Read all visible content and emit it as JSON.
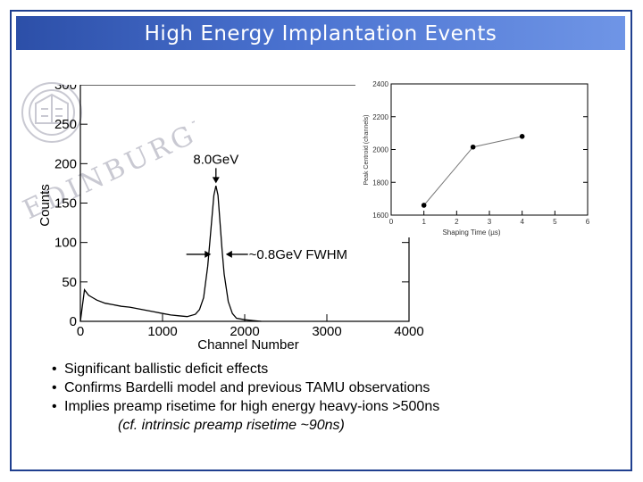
{
  "slide": {
    "title": "High Energy Implantation Events",
    "bullet_marker": "•",
    "bullets": [
      "Significant ballistic deficit effects",
      "Confirms Bardelli model and previous TAMU observations",
      "Implies preamp risetime for high energy heavy-ions >500ns"
    ],
    "sub_note": "(cf. intrinsic preamp risetime ~90ns)",
    "watermark_text": "EDINBURGH"
  },
  "colors": {
    "title_bar": "#3a61c0",
    "frame": "#1f3f8f",
    "watermark": "#c9c9d2"
  },
  "chart_data": [
    {
      "type": "line",
      "xlabel": "Channel Number",
      "ylabel": "Counts",
      "xlim": [
        0,
        4000
      ],
      "ylim": [
        0,
        300
      ],
      "xticks": [
        0,
        1000,
        2000,
        3000,
        4000
      ],
      "yticks": [
        0,
        50,
        100,
        150,
        200,
        250,
        300
      ],
      "grid": false,
      "series": [
        {
          "x": [
            0,
            50,
            100,
            150,
            200,
            300,
            400,
            500,
            600,
            700,
            800,
            900,
            1000,
            1100,
            1200,
            1300,
            1400,
            1450,
            1500,
            1550,
            1600,
            1625,
            1650,
            1675,
            1700,
            1725,
            1750,
            1800,
            1850,
            1900,
            2000,
            2100,
            2200
          ],
          "y": [
            0,
            40,
            33,
            30,
            27,
            23,
            21,
            19,
            18,
            16,
            14,
            12,
            10,
            8,
            7,
            6,
            9,
            15,
            30,
            70,
            130,
            160,
            172,
            160,
            125,
            90,
            60,
            25,
            10,
            4,
            2,
            1,
            0
          ]
        }
      ],
      "annotations": [
        {
          "text": "8.0GeV",
          "x": 1650,
          "y": 200
        },
        {
          "text": "~0.8GeV FWHM",
          "x": 2050,
          "y": 85
        }
      ]
    },
    {
      "type": "line",
      "xlabel": "Shaping Time (µs)",
      "ylabel": "Peak Centroid (channels)",
      "xlim": [
        0,
        6
      ],
      "ylim": [
        1600,
        2400
      ],
      "xticks": [
        0,
        1,
        2,
        3,
        4,
        5,
        6
      ],
      "yticks": [
        1600,
        1800,
        2000,
        2200,
        2400
      ],
      "grid": false,
      "series": [
        {
          "x": [
            1,
            2.5,
            4
          ],
          "y": [
            1660,
            2015,
            2080
          ]
        }
      ]
    }
  ]
}
